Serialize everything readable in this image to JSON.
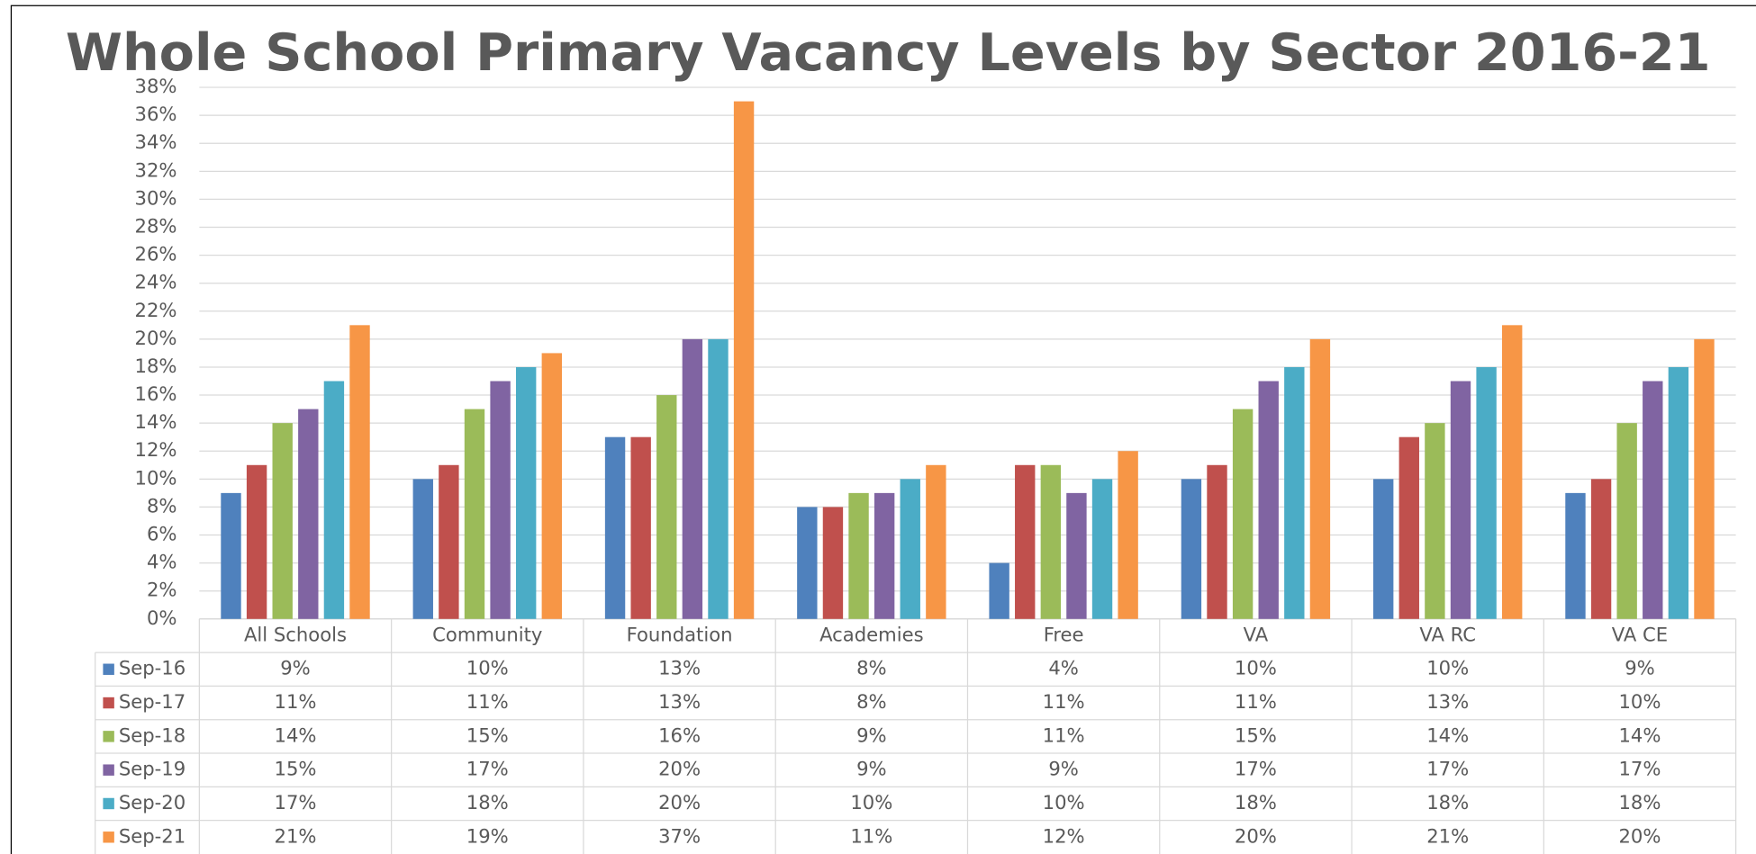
{
  "chart_data": {
    "type": "bar",
    "title": "Whole School Primary Vacancy Levels by Sector 2016-21",
    "categories": [
      "All Schools",
      "Community",
      "Foundation",
      "Academies",
      "Free",
      "VA",
      "VA RC",
      "VA CE"
    ],
    "series": [
      {
        "name": "Sep-16",
        "color": "#4f81bd",
        "values": [
          9,
          10,
          13,
          8,
          4,
          10,
          10,
          9
        ],
        "value_labels": [
          "9%",
          "10%",
          "13%",
          "8%",
          "4%",
          "10%",
          "10%",
          "9%"
        ]
      },
      {
        "name": "Sep-17",
        "color": "#c0504d",
        "values": [
          11,
          11,
          13,
          8,
          11,
          11,
          13,
          10
        ],
        "value_labels": [
          "11%",
          "11%",
          "13%",
          "8%",
          "11%",
          "11%",
          "13%",
          "10%"
        ]
      },
      {
        "name": "Sep-18",
        "color": "#9bbb59",
        "values": [
          14,
          15,
          16,
          9,
          11,
          15,
          14,
          14
        ],
        "value_labels": [
          "14%",
          "15%",
          "16%",
          "9%",
          "11%",
          "15%",
          "14%",
          "14%"
        ]
      },
      {
        "name": "Sep-19",
        "color": "#8064a2",
        "values": [
          15,
          17,
          20,
          9,
          9,
          17,
          17,
          17
        ],
        "value_labels": [
          "15%",
          "17%",
          "20%",
          "9%",
          "9%",
          "17%",
          "17%",
          "17%"
        ]
      },
      {
        "name": "Sep-20",
        "color": "#4bacc6",
        "values": [
          17,
          18,
          20,
          10,
          10,
          18,
          18,
          18
        ],
        "value_labels": [
          "17%",
          "18%",
          "20%",
          "10%",
          "10%",
          "18%",
          "18%",
          "18%"
        ]
      },
      {
        "name": "Sep-21",
        "color": "#f79646",
        "values": [
          21,
          19,
          37,
          11,
          12,
          20,
          21,
          20
        ],
        "value_labels": [
          "21%",
          "19%",
          "37%",
          "11%",
          "12%",
          "20%",
          "21%",
          "20%"
        ]
      }
    ],
    "ylim": [
      0,
      38
    ],
    "yticks": [
      {
        "value": 0,
        "label": "0%"
      },
      {
        "value": 2,
        "label": "2%"
      },
      {
        "value": 4,
        "label": "4%"
      },
      {
        "value": 6,
        "label": "6%"
      },
      {
        "value": 8,
        "label": "8%"
      },
      {
        "value": 10,
        "label": "10%"
      },
      {
        "value": 12,
        "label": "12%"
      },
      {
        "value": 14,
        "label": "14%"
      },
      {
        "value": 16,
        "label": "16%"
      },
      {
        "value": 18,
        "label": "18%"
      },
      {
        "value": 20,
        "label": "20%"
      },
      {
        "value": 22,
        "label": "22%"
      },
      {
        "value": 24,
        "label": "24%"
      },
      {
        "value": 26,
        "label": "26%"
      },
      {
        "value": 28,
        "label": "28%"
      },
      {
        "value": 30,
        "label": "30%"
      },
      {
        "value": 32,
        "label": "32%"
      },
      {
        "value": 34,
        "label": "34%"
      },
      {
        "value": 36,
        "label": "36%"
      },
      {
        "value": 38,
        "label": "38%"
      }
    ],
    "grid": true
  }
}
